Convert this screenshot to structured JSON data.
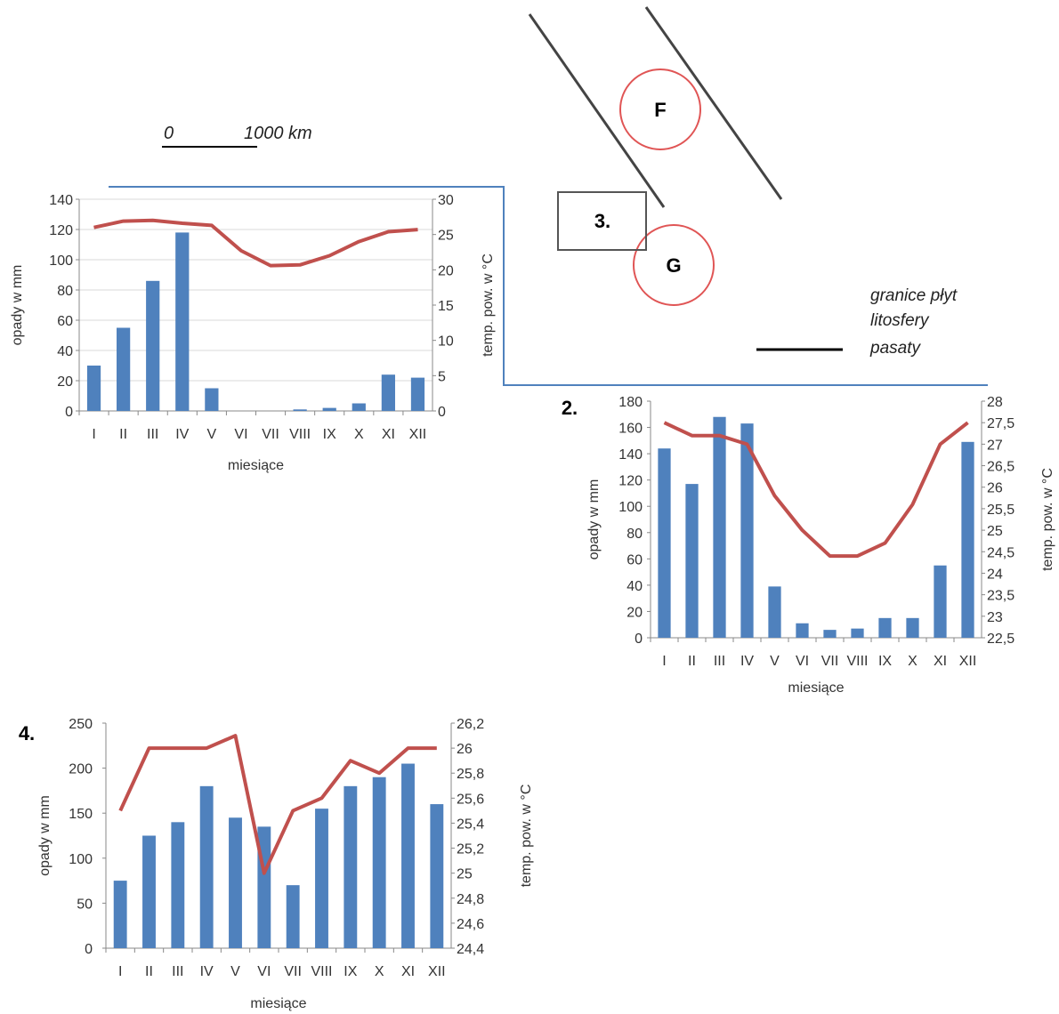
{
  "map": {
    "scale_start": "0",
    "scale_end": "1000 km",
    "label_3": "3.",
    "label_F": "F",
    "label_G": "G",
    "legend_line1": "granice płyt",
    "legend_line2": "litosfery",
    "legend_line3": "pasaty"
  },
  "colors": {
    "bars": "#4f81bd",
    "line": "#c0504d",
    "grid": "#d9d9d9",
    "map_line": "#4f81bd",
    "circle": "#e05555"
  },
  "chart_data": [
    {
      "type": "bar",
      "label": "",
      "categories": [
        "I",
        "II",
        "III",
        "IV",
        "V",
        "VI",
        "VII",
        "VIII",
        "IX",
        "X",
        "XI",
        "XII"
      ],
      "xlabel": "miesiące",
      "ylabel": "opady w mm",
      "y2label": "temp. pow. w °C",
      "ylim": [
        0,
        140
      ],
      "y_ticks": [
        "0",
        "20",
        "40",
        "60",
        "80",
        "100",
        "120",
        "140"
      ],
      "y2lim": [
        0,
        30
      ],
      "y2_ticks": [
        "0",
        "5",
        "10",
        "15",
        "20",
        "25",
        "30"
      ],
      "grid": true,
      "series": [
        {
          "kind": "bar",
          "axis": "left",
          "values": [
            30,
            55,
            86,
            118,
            15,
            0,
            0,
            1,
            2,
            5,
            24,
            22
          ]
        },
        {
          "kind": "line",
          "axis": "right",
          "values": [
            26,
            26.9,
            27,
            26.6,
            26.3,
            22.7,
            20.6,
            20.7,
            22,
            24,
            25.4,
            25.7
          ]
        }
      ]
    },
    {
      "type": "bar",
      "label": "2.",
      "categories": [
        "I",
        "II",
        "III",
        "IV",
        "V",
        "VI",
        "VII",
        "VIII",
        "IX",
        "X",
        "XI",
        "XII"
      ],
      "xlabel": "miesiące",
      "ylabel": "opady w mm",
      "y2label": "temp. pow. w °C",
      "ylim": [
        0,
        180
      ],
      "y_ticks": [
        "0",
        "20",
        "40",
        "60",
        "80",
        "100",
        "120",
        "140",
        "160",
        "180"
      ],
      "y2lim": [
        22.5,
        28
      ],
      "y2_ticks": [
        "22,5",
        "23",
        "23,5",
        "24",
        "24,5",
        "25",
        "25,5",
        "26",
        "26,5",
        "27",
        "27,5",
        "28"
      ],
      "grid": false,
      "series": [
        {
          "kind": "bar",
          "axis": "left",
          "values": [
            144,
            117,
            168,
            163,
            39,
            11,
            6,
            7,
            15,
            15,
            55,
            149
          ]
        },
        {
          "kind": "line",
          "axis": "right",
          "values": [
            27.5,
            27.2,
            27.2,
            27,
            25.8,
            25,
            24.4,
            24.4,
            24.7,
            25.6,
            27,
            27.5
          ]
        }
      ]
    },
    {
      "type": "bar",
      "label": "4.",
      "categories": [
        "I",
        "II",
        "III",
        "IV",
        "V",
        "VI",
        "VII",
        "VIII",
        "IX",
        "X",
        "XI",
        "XII"
      ],
      "xlabel": "miesiące",
      "ylabel": "opady w mm",
      "y2label": "temp. pow. w °C",
      "ylim": [
        0,
        250
      ],
      "y_ticks": [
        "0",
        "50",
        "100",
        "150",
        "200",
        "250"
      ],
      "y2lim": [
        24.4,
        26.2
      ],
      "y2_ticks": [
        "24,4",
        "24,6",
        "24,8",
        "25",
        "25,2",
        "25,4",
        "25,6",
        "25,8",
        "26",
        "26,2"
      ],
      "grid": false,
      "series": [
        {
          "kind": "bar",
          "axis": "left",
          "values": [
            75,
            125,
            140,
            180,
            145,
            135,
            70,
            155,
            180,
            190,
            205,
            160
          ]
        },
        {
          "kind": "line",
          "axis": "right",
          "values": [
            25.5,
            26,
            26,
            26,
            26.1,
            25,
            25.5,
            25.6,
            25.9,
            25.8,
            26,
            26
          ]
        }
      ]
    }
  ]
}
